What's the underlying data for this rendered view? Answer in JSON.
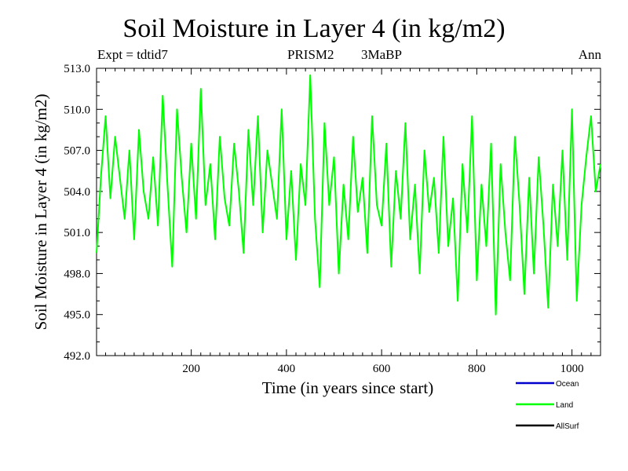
{
  "chart_data": {
    "type": "line",
    "title": "Soil Moisture in Layer 4 (in kg/m2)",
    "expt_label": "Expt = tdtid7",
    "center_label_1": "PRISM2",
    "center_label_2": "3MaBP",
    "season_label": "Ann",
    "xlabel": "Time (in years since start)",
    "ylabel": "Soil Moisture in Layer 4 (in kg/m2)",
    "xlim": [
      1,
      1060
    ],
    "ylim": [
      492.0,
      513.0
    ],
    "xticks": [
      200,
      400,
      600,
      800,
      1000
    ],
    "xtick_labels": [
      "200",
      "400",
      "600",
      "800",
      "1000"
    ],
    "yticks": [
      492.0,
      495.0,
      498.0,
      501.0,
      504.0,
      507.0,
      510.0,
      513.0
    ],
    "ytick_labels": [
      "492.0",
      "495.0",
      "498.0",
      "501.0",
      "504.0",
      "507.0",
      "510.0",
      "513.0"
    ],
    "legend": [
      {
        "name": "Ocean",
        "color": "#0000cc"
      },
      {
        "name": "Land",
        "color": "#00ff00"
      },
      {
        "name": "AllSurf",
        "color": "#000000"
      }
    ],
    "series": [
      {
        "name": "Land",
        "color": "#00ff00",
        "x": [
          1,
          10,
          20,
          30,
          40,
          50,
          60,
          70,
          80,
          90,
          100,
          110,
          120,
          130,
          140,
          150,
          160,
          170,
          180,
          190,
          200,
          210,
          220,
          230,
          240,
          250,
          260,
          270,
          280,
          290,
          300,
          310,
          320,
          330,
          340,
          350,
          360,
          370,
          380,
          390,
          400,
          410,
          420,
          430,
          440,
          450,
          460,
          470,
          480,
          490,
          500,
          510,
          520,
          530,
          540,
          550,
          560,
          570,
          580,
          590,
          600,
          610,
          620,
          630,
          640,
          650,
          660,
          670,
          680,
          690,
          700,
          710,
          720,
          730,
          740,
          750,
          760,
          770,
          780,
          790,
          800,
          810,
          820,
          830,
          840,
          850,
          860,
          870,
          880,
          890,
          900,
          910,
          920,
          930,
          940,
          950,
          960,
          970,
          980,
          990,
          1000,
          1010,
          1020,
          1030,
          1040,
          1050,
          1060
        ],
        "values": [
          499.5,
          505.0,
          509.5,
          503.5,
          508.0,
          505.0,
          502.0,
          507.0,
          500.5,
          508.5,
          504.0,
          502.0,
          506.5,
          501.5,
          511.0,
          504.5,
          498.5,
          510.0,
          505.0,
          501.0,
          507.5,
          502.0,
          511.5,
          503.0,
          506.0,
          500.5,
          508.0,
          503.5,
          501.5,
          507.5,
          504.0,
          499.5,
          508.5,
          503.0,
          509.5,
          501.0,
          507.0,
          504.5,
          502.0,
          510.0,
          500.5,
          505.5,
          499.0,
          506.0,
          503.0,
          512.5,
          502.0,
          497.0,
          509.0,
          503.0,
          506.5,
          498.0,
          504.5,
          500.5,
          508.0,
          502.5,
          505.0,
          499.5,
          509.5,
          503.0,
          501.5,
          507.5,
          498.5,
          505.5,
          502.0,
          509.0,
          500.5,
          504.5,
          498.0,
          507.0,
          502.5,
          505.0,
          499.5,
          508.0,
          500.0,
          503.5,
          496.0,
          506.0,
          501.0,
          509.5,
          497.5,
          504.5,
          500.0,
          507.5,
          495.0,
          506.0,
          501.0,
          497.5,
          508.0,
          503.0,
          496.5,
          505.0,
          498.0,
          506.5,
          501.5,
          495.5,
          504.5,
          500.0,
          507.0,
          499.0,
          510.0,
          496.0,
          503.0,
          506.5,
          509.5,
          504.0,
          506.0
        ]
      }
    ]
  }
}
